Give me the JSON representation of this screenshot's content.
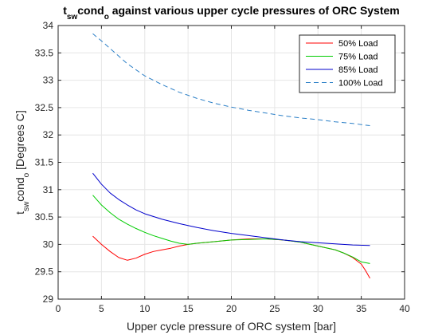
{
  "chart_data": {
    "type": "line",
    "title": {
      "parts": [
        {
          "text": "t",
          "sub": false
        },
        {
          "text": "sw",
          "sub": true
        },
        {
          "text": "cond",
          "sub": false
        },
        {
          "text": "o",
          "sub": true
        },
        {
          "text": " against various upper cycle pressures of ORC System",
          "sub": false
        }
      ]
    },
    "xlabel": "Upper cycle pressure of ORC system [bar]",
    "ylabel": {
      "parts": [
        {
          "text": "t",
          "sub": false
        },
        {
          "text": "sw",
          "sub": true
        },
        {
          "text": "cond",
          "sub": false
        },
        {
          "text": "o",
          "sub": true
        },
        {
          "text": "  [Degrees C]",
          "sub": false
        }
      ]
    },
    "xlim": [
      0,
      40
    ],
    "ylim": [
      29,
      34
    ],
    "xticks": [
      0,
      5,
      10,
      15,
      20,
      25,
      30,
      35,
      40
    ],
    "yticks": [
      29,
      29.5,
      30,
      30.5,
      31,
      31.5,
      32,
      32.5,
      33,
      33.5,
      34
    ],
    "grid": true,
    "legend_position": "top-right",
    "series": [
      {
        "name": "50% Load",
        "color": "#ff0000",
        "dash": "solid",
        "points": [
          [
            4,
            30.15
          ],
          [
            5,
            30.0
          ],
          [
            6,
            29.87
          ],
          [
            7,
            29.76
          ],
          [
            8,
            29.71
          ],
          [
            9,
            29.75
          ],
          [
            10,
            29.82
          ],
          [
            11,
            29.87
          ],
          [
            12,
            29.9
          ],
          [
            13,
            29.93
          ],
          [
            14,
            29.97
          ],
          [
            15,
            30.0
          ],
          [
            16,
            30.02
          ],
          [
            18,
            30.05
          ],
          [
            20,
            30.08
          ],
          [
            22,
            30.1
          ],
          [
            24,
            30.1
          ],
          [
            25,
            30.09
          ],
          [
            26,
            30.08
          ],
          [
            28,
            30.04
          ],
          [
            30,
            29.97
          ],
          [
            32,
            29.9
          ],
          [
            33,
            29.84
          ],
          [
            34,
            29.76
          ],
          [
            35,
            29.64
          ],
          [
            35.5,
            29.52
          ],
          [
            36,
            29.38
          ]
        ]
      },
      {
        "name": "75% Load",
        "color": "#00cc00",
        "dash": "solid",
        "points": [
          [
            4,
            30.9
          ],
          [
            5,
            30.72
          ],
          [
            6,
            30.58
          ],
          [
            7,
            30.46
          ],
          [
            8,
            30.37
          ],
          [
            9,
            30.29
          ],
          [
            10,
            30.22
          ],
          [
            11,
            30.16
          ],
          [
            12,
            30.11
          ],
          [
            13,
            30.06
          ],
          [
            14,
            30.02
          ],
          [
            15,
            30.0
          ],
          [
            16,
            30.02
          ],
          [
            18,
            30.05
          ],
          [
            20,
            30.08
          ],
          [
            22,
            30.09
          ],
          [
            24,
            30.1
          ],
          [
            26,
            30.08
          ],
          [
            28,
            30.04
          ],
          [
            30,
            29.97
          ],
          [
            32,
            29.9
          ],
          [
            33,
            29.84
          ],
          [
            34,
            29.77
          ],
          [
            35,
            29.68
          ],
          [
            36,
            29.65
          ]
        ]
      },
      {
        "name": "85% Load",
        "color": "#0000cc",
        "dash": "solid",
        "points": [
          [
            4,
            31.3
          ],
          [
            5,
            31.1
          ],
          [
            6,
            30.94
          ],
          [
            7,
            30.82
          ],
          [
            8,
            30.72
          ],
          [
            9,
            30.63
          ],
          [
            10,
            30.56
          ],
          [
            12,
            30.46
          ],
          [
            14,
            30.38
          ],
          [
            16,
            30.31
          ],
          [
            18,
            30.25
          ],
          [
            20,
            30.2
          ],
          [
            22,
            30.16
          ],
          [
            24,
            30.12
          ],
          [
            26,
            30.08
          ],
          [
            28,
            30.05
          ],
          [
            30,
            30.03
          ],
          [
            32,
            30.01
          ],
          [
            34,
            29.99
          ],
          [
            36,
            29.98
          ]
        ]
      },
      {
        "name": "100% Load",
        "color": "#2b7fc7",
        "dash": "dashed",
        "points": [
          [
            4,
            33.85
          ],
          [
            5,
            33.72
          ],
          [
            6,
            33.58
          ],
          [
            7,
            33.44
          ],
          [
            8,
            33.3
          ],
          [
            9,
            33.19
          ],
          [
            10,
            33.08
          ],
          [
            12,
            32.92
          ],
          [
            14,
            32.78
          ],
          [
            16,
            32.67
          ],
          [
            18,
            32.58
          ],
          [
            20,
            32.51
          ],
          [
            22,
            32.45
          ],
          [
            24,
            32.4
          ],
          [
            26,
            32.35
          ],
          [
            28,
            32.31
          ],
          [
            30,
            32.28
          ],
          [
            32,
            32.24
          ],
          [
            34,
            32.21
          ],
          [
            36,
            32.17
          ]
        ]
      }
    ]
  }
}
